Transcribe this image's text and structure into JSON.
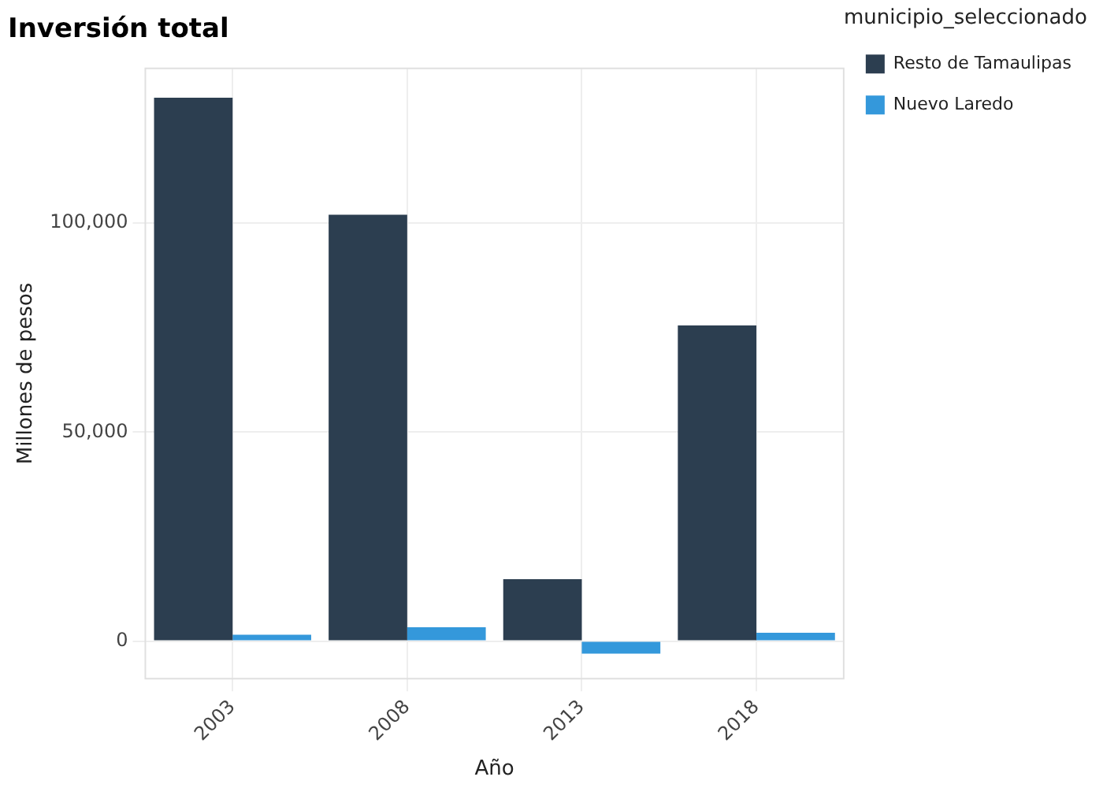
{
  "chart_data": {
    "type": "bar",
    "title": "Inversión total",
    "xlabel": "Año",
    "ylabel": "Millones de pesos",
    "legend_title": "municipio_seleccionado",
    "categories": [
      "2003",
      "2008",
      "2013",
      "2018"
    ],
    "series": [
      {
        "name": "Resto de Tamaulipas",
        "color": "#2c3e50",
        "values": [
          130000,
          102000,
          14800,
          75500
        ]
      },
      {
        "name": "Nuevo Laredo",
        "color": "#3498db",
        "values": [
          1500,
          3300,
          -3000,
          2000
        ]
      }
    ],
    "ylim": [
      -9000,
      137000
    ],
    "yticks": [
      {
        "value": 0,
        "label": "0"
      },
      {
        "value": 50000,
        "label": "50,000"
      },
      {
        "value": 100000,
        "label": "100,000"
      }
    ],
    "grid": true,
    "legend": "top right"
  }
}
